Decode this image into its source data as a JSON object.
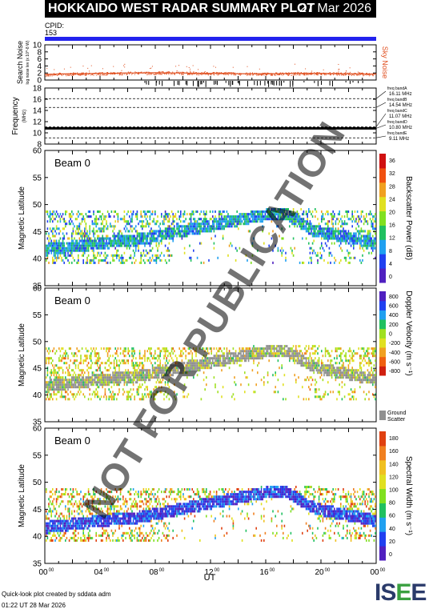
{
  "header": {
    "title": "HOKKAIDO WEST RADAR SUMMARY PLOT",
    "date": "27 Mar 2026"
  },
  "cpid": {
    "label": "CPID:",
    "value": "153"
  },
  "chart_data": [
    {
      "type": "line",
      "name": "noise",
      "ylabel": "Search Noise",
      "ylabel_sub": "log noise lev (x 10^-8 W)",
      "right_label": "Sky Noise",
      "ylim": [
        0,
        10
      ],
      "yticks": [
        "0",
        "2",
        "4",
        "6",
        "8",
        "10"
      ],
      "x": [
        0,
        1,
        2,
        3,
        4,
        5,
        6,
        7,
        8,
        9,
        10,
        11,
        12,
        13,
        14,
        15,
        16,
        17,
        18,
        19,
        20,
        21,
        22,
        23,
        24
      ],
      "values": [
        1.6,
        1.7,
        1.8,
        1.8,
        1.9,
        1.9,
        2.0,
        2.0,
        2.1,
        2.0,
        2.0,
        1.9,
        1.9,
        1.9,
        1.8,
        1.8,
        1.8,
        1.8,
        1.9,
        1.9,
        1.9,
        1.8,
        1.8,
        1.7,
        1.7
      ]
    },
    {
      "type": "line",
      "name": "frequency",
      "ylabel": "Frequency",
      "ylabel_sub": "(MHz)",
      "ylim": [
        8,
        18
      ],
      "yticks": [
        "8",
        "10",
        "12",
        "14",
        "16",
        "18"
      ],
      "bands": [
        {
          "label": "freq bandA",
          "freq": "16.11 MHz",
          "value": 16.11
        },
        {
          "label": "freq bandB",
          "freq": "14.54 MHz",
          "value": 14.54
        },
        {
          "label": "freq bandC",
          "freq": "11.07 MHz",
          "value": 11.07
        },
        {
          "label": "freq bandD",
          "freq": "10.80 MHz",
          "value": 10.8
        },
        {
          "label": "freq bandE",
          "freq": "9.11 MHz",
          "value": 9.11
        }
      ],
      "operating_freq": 10.8
    },
    {
      "type": "heatmap",
      "name": "power",
      "beam_label": "Beam  0",
      "ylabel": "Magnetic Latitude",
      "ylim": [
        35,
        60
      ],
      "yticks": [
        "35",
        "40",
        "45",
        "50",
        "55",
        "60"
      ],
      "colorbar_label": "Backscatter Power (dB)",
      "colorbar_ticks": [
        "0",
        "4",
        "8",
        "12",
        "16",
        "20",
        "24",
        "28",
        "32",
        "36"
      ]
    },
    {
      "type": "heatmap",
      "name": "velocity",
      "beam_label": "Beam  0",
      "ylabel": "Magnetic Latitude",
      "ylim": [
        35,
        60
      ],
      "yticks": [
        "35",
        "40",
        "45",
        "50",
        "55",
        "60"
      ],
      "colorbar_label": "Doppler Velocity (m s⁻¹)",
      "colorbar_ticks": [
        "-800",
        "-600",
        "-400",
        "-200",
        "0",
        "200",
        "400",
        "600",
        "800"
      ],
      "ground_label": "Ground Scatter"
    },
    {
      "type": "heatmap",
      "name": "width",
      "beam_label": "Beam  0",
      "ylabel": "Magnetic Latitude",
      "ylim": [
        35,
        60
      ],
      "yticks": [
        "35",
        "40",
        "45",
        "50",
        "55",
        "60"
      ],
      "colorbar_label": "Spectral Width (m s⁻¹)",
      "colorbar_ticks": [
        "0",
        "20",
        "40",
        "60",
        "80",
        "100",
        "120",
        "140",
        "160",
        "180"
      ]
    }
  ],
  "x_axis": {
    "ticks": [
      "00",
      "04",
      "08",
      "12",
      "16",
      "20",
      "00"
    ],
    "tick_sup": "00",
    "label": "UT"
  },
  "footer": {
    "line1": "Quick-look plot created by sddata adm",
    "line2": "01:22 UT 28 Mar 2026"
  },
  "logo": {
    "text_a": "IS",
    "text_b": "E",
    "text_c": "E"
  },
  "watermark": "NOT FOR PUBLICATION"
}
